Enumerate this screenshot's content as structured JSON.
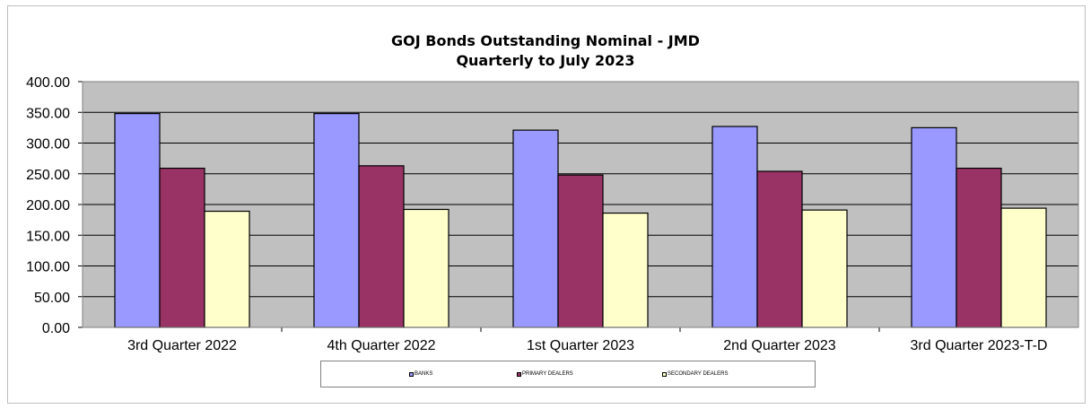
{
  "chart_data": {
    "type": "bar",
    "title": "GOJ Bonds Outstanding Nominal - JMD",
    "subtitle": "Quarterly to July 2023",
    "categories": [
      "3rd Quarter 2022",
      "4th Quarter 2022",
      "1st Quarter 2023",
      "2nd Quarter 2023",
      "3rd Quarter 2023-T-D"
    ],
    "series": [
      {
        "name": "BANKS",
        "values": [
          348,
          348,
          321,
          327,
          325
        ],
        "color": "#9999ff"
      },
      {
        "name": "PRIMARY DEALERS",
        "values": [
          259,
          263,
          248,
          254,
          259
        ],
        "color": "#993366"
      },
      {
        "name": "SECONDARY DEALERS",
        "values": [
          189,
          192,
          186,
          191,
          194
        ],
        "color": "#ffffcc"
      }
    ],
    "ylim": [
      0,
      400
    ],
    "yticks": [
      "0.00",
      "50.00",
      "100.00",
      "150.00",
      "200.00",
      "250.00",
      "300.00",
      "350.00",
      "400.00"
    ],
    "ytick_values": [
      0,
      50,
      100,
      150,
      200,
      250,
      300,
      350,
      400
    ],
    "grid": true,
    "plot_background": "#c0c0c0",
    "legend_position": "bottom"
  }
}
